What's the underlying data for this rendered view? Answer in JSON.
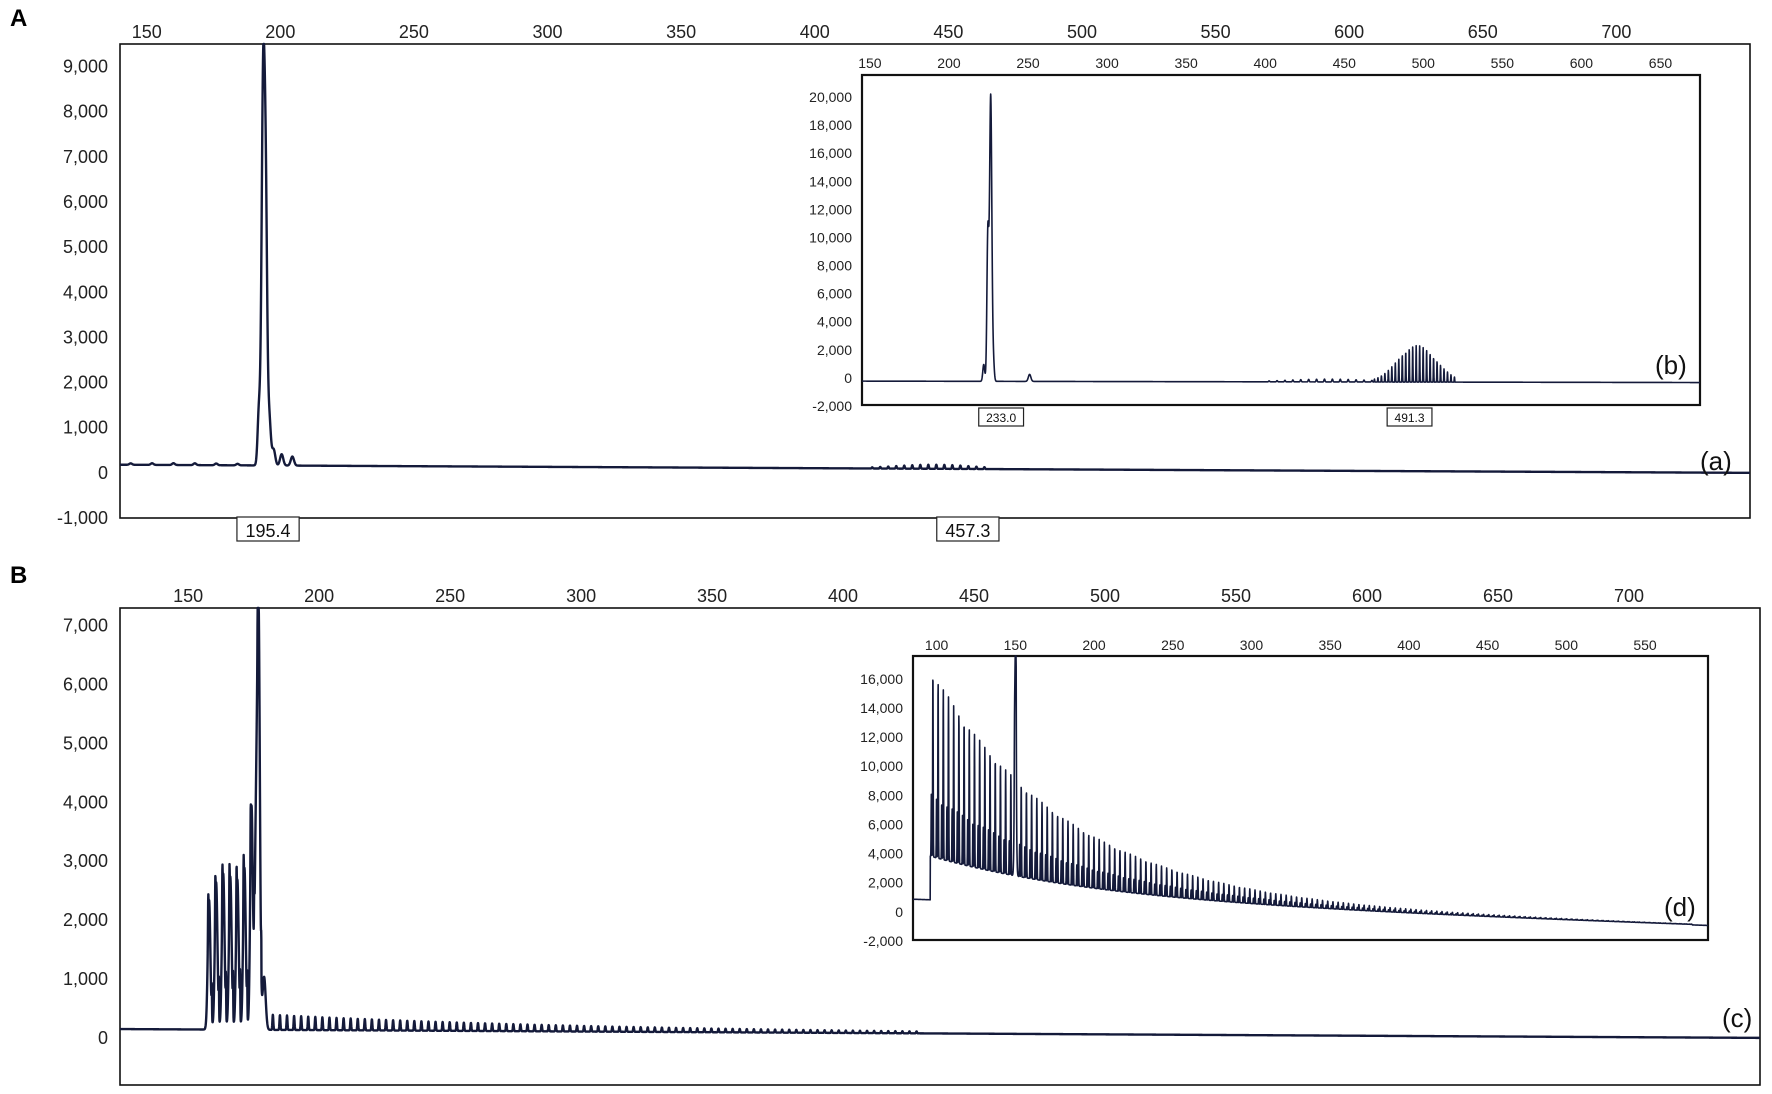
{
  "panels": [
    {
      "id": "A",
      "label": "A",
      "main": {
        "tag": "(a)",
        "type": "line",
        "xlim": [
          140,
          750
        ],
        "ylim": [
          -1000,
          9500
        ],
        "x_ticks": [
          150,
          200,
          250,
          300,
          350,
          400,
          450,
          500,
          550,
          600,
          650,
          700
        ],
        "y_ticks": [
          9000,
          8000,
          7000,
          6000,
          5000,
          4000,
          3000,
          2000,
          1000,
          0,
          -1000
        ],
        "y_tick_labels": [
          "9,000",
          "8,000",
          "7,000",
          "6,000",
          "5,000",
          "4,000",
          "3,000",
          "2,000",
          "1,000",
          "0",
          "-1,000"
        ],
        "peak_labels": [
          {
            "x": 195.4,
            "text": "195.4"
          },
          {
            "x": 457.3,
            "text": "457.3"
          }
        ],
        "peaks": [
          {
            "x": 192.0,
            "y": 1200,
            "w": 0.5
          },
          {
            "x": 193.6,
            "y": 8600,
            "w": 0.6
          },
          {
            "x": 194.6,
            "y": 4700,
            "w": 0.5
          },
          {
            "x": 195.8,
            "y": 1100,
            "w": 0.6
          },
          {
            "x": 197.5,
            "y": 350,
            "w": 0.6
          },
          {
            "x": 200.5,
            "y": 250,
            "w": 0.6
          },
          {
            "x": 204.5,
            "y": 200,
            "w": 0.6
          }
        ],
        "ripple": [
          {
            "from": 420,
            "to": 465,
            "step": 3,
            "amp": 90,
            "center": 445,
            "spread": 15
          },
          {
            "from": 140,
            "to": 190,
            "step": 8,
            "amp": 40,
            "center": 165,
            "spread": 30
          }
        ],
        "baseline": {
          "start": 180,
          "end": 0
        }
      },
      "inset": {
        "tag": "(b)",
        "type": "line",
        "xlim": [
          145,
          675
        ],
        "ylim": [
          -2000,
          21500
        ],
        "x_ticks": [
          150,
          200,
          250,
          300,
          350,
          400,
          450,
          500,
          550,
          600,
          650
        ],
        "y_ticks": [
          20000,
          18000,
          16000,
          14000,
          12000,
          10000,
          8000,
          6000,
          4000,
          2000,
          0,
          -2000
        ],
        "y_tick_labels": [
          "20,000",
          "18,000",
          "16,000",
          "14,000",
          "12,000",
          "10,000",
          "8,000",
          "6,000",
          "4,000",
          "2,000",
          "0",
          "-2,000"
        ],
        "peak_labels": [
          {
            "x": 233.0,
            "text": "233.0"
          },
          {
            "x": 491.3,
            "text": "491.3"
          }
        ],
        "peaks": [
          {
            "x": 222.0,
            "y": 1200,
            "w": 0.6
          },
          {
            "x": 224.6,
            "y": 10500,
            "w": 0.6
          },
          {
            "x": 226.4,
            "y": 20300,
            "w": 0.7
          },
          {
            "x": 228.0,
            "y": 1500,
            "w": 0.6
          },
          {
            "x": 251.0,
            "y": 500,
            "w": 0.8
          }
        ],
        "ripple": [
          {
            "from": 468,
            "to": 520,
            "step": 2.2,
            "amp": 2600,
            "center": 496,
            "spread": 12
          },
          {
            "from": 400,
            "to": 470,
            "step": 5,
            "amp": 200,
            "center": 440,
            "spread": 25
          }
        ],
        "baseline": {
          "start": -300,
          "end": -400
        }
      }
    },
    {
      "id": "B",
      "label": "B",
      "main": {
        "tag": "(c)",
        "type": "line",
        "xlim": [
          124,
          750
        ],
        "ylim": [
          -800,
          7300
        ],
        "x_ticks": [
          150,
          200,
          250,
          300,
          350,
          400,
          450,
          500,
          550,
          600,
          650,
          700
        ],
        "y_ticks": [
          7000,
          6000,
          5000,
          4000,
          3000,
          2000,
          1000,
          0
        ],
        "y_tick_labels": [
          "7,000",
          "6,000",
          "5,000",
          "4,000",
          "3,000",
          "2,000",
          "1,000",
          "0"
        ],
        "peak_labels": [],
        "peaks": [
          {
            "x": 158.0,
            "y": 2200,
            "w": 0.5
          },
          {
            "x": 160.7,
            "y": 2500,
            "w": 0.5
          },
          {
            "x": 163.4,
            "y": 2650,
            "w": 0.5
          },
          {
            "x": 166.1,
            "y": 2600,
            "w": 0.5
          },
          {
            "x": 168.8,
            "y": 2550,
            "w": 0.5
          },
          {
            "x": 171.5,
            "y": 2750,
            "w": 0.5
          },
          {
            "x": 174.2,
            "y": 3800,
            "w": 0.5
          },
          {
            "x": 175.9,
            "y": 3200,
            "w": 0.5
          },
          {
            "x": 176.9,
            "y": 6900,
            "w": 0.5
          },
          {
            "x": 179.0,
            "y": 900,
            "w": 0.6
          }
        ],
        "ripple": [
          {
            "from": 181,
            "to": 430,
            "step": 2.7,
            "amp": 260,
            "center": 181,
            "spread": 120,
            "decay": true
          },
          {
            "from": 157,
            "to": 178,
            "step": 1.35,
            "amp": 700,
            "center": 170,
            "spread": 14
          }
        ],
        "baseline": {
          "start": 150,
          "end": 0
        }
      },
      "inset": {
        "tag": "(d)",
        "type": "line",
        "xlim": [
          85,
          590
        ],
        "ylim": [
          -2000,
          17500
        ],
        "x_ticks": [
          100,
          150,
          200,
          250,
          300,
          350,
          400,
          450,
          500,
          550
        ],
        "y_ticks": [
          16000,
          14000,
          12000,
          10000,
          8000,
          6000,
          4000,
          2000,
          0,
          -2000
        ],
        "y_tick_labels": [
          "16,000",
          "14,000",
          "12,000",
          "10,000",
          "8,000",
          "6,000",
          "4,000",
          "2,000",
          "0",
          "-2,000"
        ],
        "peak_labels": [],
        "peaks": [
          {
            "x": 150.0,
            "y": 15200,
            "w": 0.5
          }
        ],
        "comb": {
          "from": 96,
          "to": 580,
          "step": 3.3,
          "peak_start": 16000,
          "decay": 85,
          "floor": -800
        },
        "baseline": {
          "start": 800,
          "end": -1000
        }
      }
    }
  ]
}
